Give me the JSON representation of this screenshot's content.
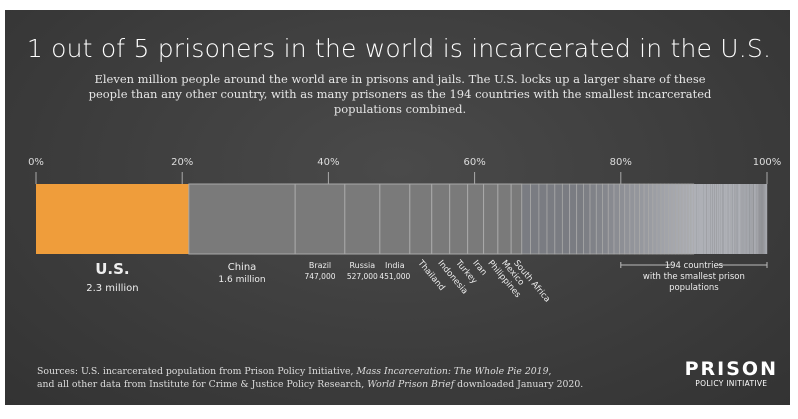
{
  "title": "1 out of 5 prisoners in the world is incarcerated in the U.S.",
  "subtitle": "Eleven million people around the world are in prisons and jails. The U.S. locks up a larger share of these people than any other country, with as many prisoners as the 194 countries with the smallest incarcerated populations combined.",
  "chart_data": {
    "type": "bar",
    "orientation": "stacked-horizontal",
    "total_millions": 11,
    "ticks": [
      "0%",
      "20%",
      "40%",
      "60%",
      "80%",
      "100%"
    ],
    "tick_values": [
      0,
      20,
      40,
      60,
      80,
      100
    ],
    "colors": {
      "us": "#ef9d3b",
      "others": "#7a7a7a",
      "smallest": "#b3b7be"
    },
    "segments": [
      {
        "name": "U.S.",
        "value": 2.3,
        "label": "2.3 million",
        "style": "large"
      },
      {
        "name": "China",
        "value": 1.6,
        "label": "1.6 million",
        "style": "medium"
      },
      {
        "name": "Brazil",
        "value": 0.747,
        "label": "747,000",
        "style": "small"
      },
      {
        "name": "Russia",
        "value": 0.527,
        "label": "527,000",
        "style": "small"
      },
      {
        "name": "India",
        "value": 0.451,
        "label": "451,000",
        "style": "small"
      },
      {
        "name": "Thailand",
        "value": 0.33,
        "style": "rotated"
      },
      {
        "name": "Indonesia",
        "value": 0.27,
        "style": "rotated"
      },
      {
        "name": "Turkey",
        "value": 0.27,
        "style": "rotated"
      },
      {
        "name": "Iran",
        "value": 0.24,
        "style": "rotated"
      },
      {
        "name": "Philippines",
        "value": 0.215,
        "style": "rotated"
      },
      {
        "name": "Mexico",
        "value": 0.2,
        "style": "rotated"
      },
      {
        "name": "South Africa",
        "value": 0.16,
        "style": "rotated"
      }
    ],
    "smallest_bracket": {
      "start_percent": 80,
      "end_percent": 100,
      "label": [
        "194 countries",
        "with the smallest prison",
        "populations"
      ]
    }
  },
  "sources": {
    "line1_a": "Sources: U.S. incarcerated population from Prison Policy Initiative, ",
    "line1_i": "Mass Incarceration: The Whole Pie 2019",
    "line1_b": ",",
    "line2_a": "and all other data from Institute for Crime & Justice Policy Research, ",
    "line2_i": "World Prison Brief",
    "line2_b": " downloaded January 2020."
  },
  "logo": {
    "line1": "PRISON",
    "line2": "POLICY INITIATIVE"
  }
}
